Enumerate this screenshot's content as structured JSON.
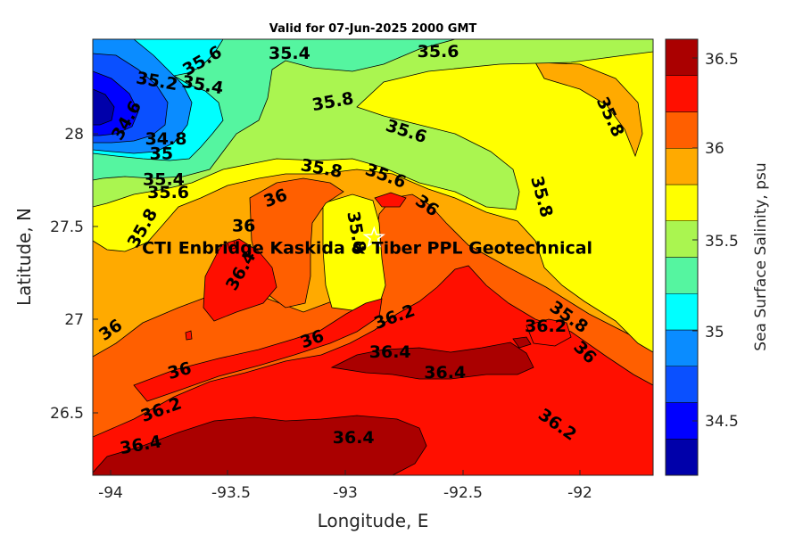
{
  "chart_data": {
    "type": "contour",
    "title": "Valid for 07-Jun-2025 2000 GMT",
    "xlabel": "Longitude, E",
    "ylabel": "Latitude, N",
    "colorbar_label": "Sea Surface Salinity, psu",
    "xlim": [
      -94.1,
      -91.65
    ],
    "ylim": [
      26.15,
      28.5
    ],
    "x_ticks": [
      "-94",
      "-93.5",
      "-93",
      "-92.5",
      "-92"
    ],
    "y_ticks": [
      "28",
      "27.5",
      "27",
      "26.5"
    ],
    "colorbar_ticks": [
      "36.5",
      "36",
      "35.5",
      "35",
      "34.5"
    ],
    "colorbar_levels": [
      34.2,
      34.4,
      34.6,
      34.8,
      35.0,
      35.2,
      35.4,
      35.6,
      35.8,
      36.0,
      36.2,
      36.4,
      36.6
    ],
    "colorbar_colors": [
      "#0000aa",
      "#0000ff",
      "#0a50ff",
      "#0a8cff",
      "#00ffff",
      "#55f5a0",
      "#aaf550",
      "#ffff00",
      "#ffaa00",
      "#ff5f00",
      "#ff0f00",
      "#aa0000"
    ],
    "contour_labels": [
      {
        "text": "35.6",
        "lon": -93.62,
        "lat": 28.38,
        "angle": -30
      },
      {
        "text": "35.4",
        "lon": -93.24,
        "lat": 28.42,
        "angle": 0
      },
      {
        "text": "35.6",
        "lon": -92.59,
        "lat": 28.43,
        "angle": 0
      },
      {
        "text": "35.2",
        "lon": -93.82,
        "lat": 28.27,
        "angle": 10
      },
      {
        "text": "35.4",
        "lon": -93.62,
        "lat": 28.25,
        "angle": 10
      },
      {
        "text": "34.6",
        "lon": -93.95,
        "lat": 28.06,
        "angle": -60
      },
      {
        "text": "34.8",
        "lon": -93.78,
        "lat": 27.96,
        "angle": 0
      },
      {
        "text": "35",
        "lon": -93.8,
        "lat": 27.88,
        "angle": 0
      },
      {
        "text": "35.4",
        "lon": -93.79,
        "lat": 27.74,
        "angle": 0
      },
      {
        "text": "35.6",
        "lon": -93.77,
        "lat": 27.67,
        "angle": 0
      },
      {
        "text": "35.8",
        "lon": -93.05,
        "lat": 28.16,
        "angle": -10
      },
      {
        "text": "35.6",
        "lon": -92.73,
        "lat": 28.0,
        "angle": 18
      },
      {
        "text": "35.8",
        "lon": -91.84,
        "lat": 28.08,
        "angle": 65
      },
      {
        "text": "35.8",
        "lon": -93.1,
        "lat": 27.8,
        "angle": 10
      },
      {
        "text": "35.6",
        "lon": -92.82,
        "lat": 27.76,
        "angle": 20
      },
      {
        "text": "36",
        "lon": -93.3,
        "lat": 27.64,
        "angle": -20
      },
      {
        "text": "36",
        "lon": -92.64,
        "lat": 27.6,
        "angle": 35
      },
      {
        "text": "35.8",
        "lon": -92.14,
        "lat": 27.65,
        "angle": 75
      },
      {
        "text": "35.8",
        "lon": -93.88,
        "lat": 27.48,
        "angle": -60
      },
      {
        "text": "36",
        "lon": -93.44,
        "lat": 27.49,
        "angle": 0
      },
      {
        "text": "35.8",
        "lon": -92.95,
        "lat": 27.46,
        "angle": 80
      },
      {
        "text": "36.4",
        "lon": -93.45,
        "lat": 27.25,
        "angle": -60
      },
      {
        "text": "35.8",
        "lon": -92.02,
        "lat": 27.0,
        "angle": 35
      },
      {
        "text": "36",
        "lon": -94.02,
        "lat": 26.93,
        "angle": -35
      },
      {
        "text": "36.2",
        "lon": -92.78,
        "lat": 27.0,
        "angle": -20
      },
      {
        "text": "36.2",
        "lon": -92.12,
        "lat": 26.95,
        "angle": 0
      },
      {
        "text": "36",
        "lon": -93.14,
        "lat": 26.88,
        "angle": -20
      },
      {
        "text": "36.4",
        "lon": -92.8,
        "lat": 26.81,
        "angle": 0
      },
      {
        "text": "36",
        "lon": -91.95,
        "lat": 26.81,
        "angle": 45
      },
      {
        "text": "36",
        "lon": -93.72,
        "lat": 26.71,
        "angle": -15
      },
      {
        "text": "36.4",
        "lon": -92.56,
        "lat": 26.7,
        "angle": 0
      },
      {
        "text": "36.2",
        "lon": -93.8,
        "lat": 26.5,
        "angle": -20
      },
      {
        "text": "36.2",
        "lon": -92.07,
        "lat": 26.42,
        "angle": 35
      },
      {
        "text": "36.4",
        "lon": -93.89,
        "lat": 26.31,
        "angle": -10
      },
      {
        "text": "36.4",
        "lon": -92.96,
        "lat": 26.35,
        "angle": 0
      }
    ],
    "annotation": {
      "text": "CTI Enbridge  Kaskida & Tiber PPL Geotechnical",
      "lon": -92.9,
      "lat": 27.37
    },
    "marker": {
      "symbol": "star",
      "lon": -92.87,
      "lat": 27.43
    }
  }
}
